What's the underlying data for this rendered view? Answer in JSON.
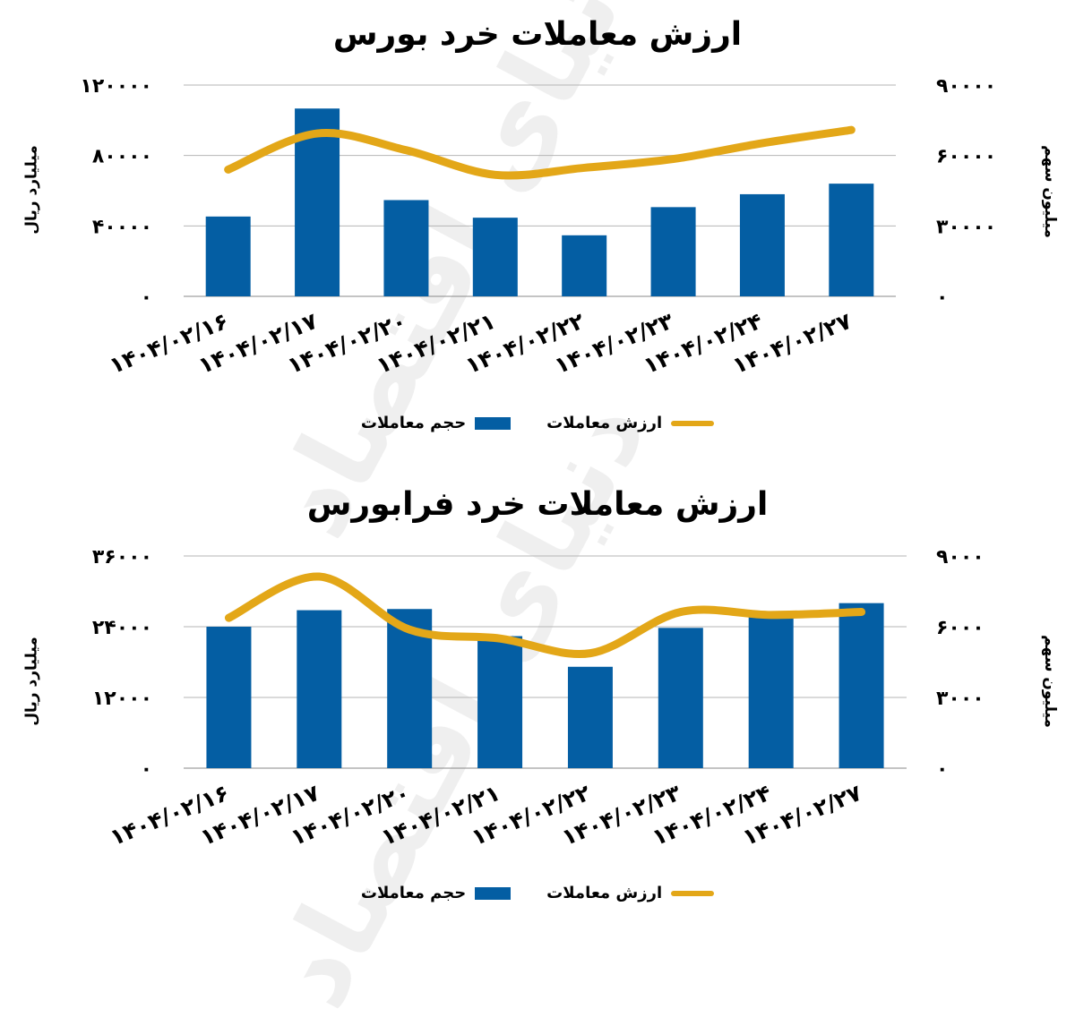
{
  "watermark_text": "دنیای اقتصاد",
  "colors": {
    "bar": "#045ea3",
    "line": "#e3a718",
    "grid": "#b4b4b4"
  },
  "legend": {
    "bar_label": "حجم معاملات",
    "line_label": "ارزش معاملات"
  },
  "chart_data": [
    {
      "type": "bar",
      "title": "ارزش معاملات خرد بورس",
      "ylabel_left": "میلیارد ریال",
      "ylabel_right": "میلیون سهم",
      "categories": [
        "1404/02/16",
        "1404/02/17",
        "1404/02/20",
        "1404/02/21",
        "1404/02/22",
        "1404/02/23",
        "1404/02/24",
        "1404/02/27"
      ],
      "y_left": {
        "range": [
          0,
          120000
        ],
        "ticks": [
          "0",
          "40000",
          "80000",
          "120000"
        ]
      },
      "y_right": {
        "range": [
          0,
          90000
        ],
        "ticks": [
          "0",
          "30000",
          "60000",
          "90000"
        ]
      },
      "grid": true,
      "series": [
        {
          "name": "حجم معاملات",
          "kind": "bar",
          "axis": "right",
          "values": [
            34000,
            80000,
            41000,
            33500,
            26000,
            38000,
            43500,
            48000
          ]
        },
        {
          "name": "ارزش معاملات",
          "kind": "line",
          "axis": "left",
          "values": [
            72000,
            92500,
            83000,
            69000,
            73000,
            78000,
            87000,
            94500
          ]
        }
      ]
    },
    {
      "type": "bar",
      "title": "ارزش معاملات خرد فرابورس",
      "ylabel_left": "میلیارد ریال",
      "ylabel_right": "میلیون سهم",
      "categories": [
        "1404/02/16",
        "1404/02/17",
        "1404/02/20",
        "1404/02/21",
        "1404/02/22",
        "1404/02/23",
        "1404/02/24",
        "1404/02/27"
      ],
      "y_left": {
        "range": [
          0,
          36000
        ],
        "ticks": [
          "0",
          "12000",
          "24000",
          "36000"
        ]
      },
      "y_right": {
        "range": [
          0,
          9000
        ],
        "ticks": [
          "0",
          "3000",
          "6000",
          "9000"
        ]
      },
      "grid": true,
      "series": [
        {
          "name": "حجم معاملات",
          "kind": "bar",
          "axis": "right",
          "values": [
            6000,
            6700,
            6750,
            5600,
            4300,
            5950,
            6450,
            7000
          ]
        },
        {
          "name": "ارزش معاملات",
          "kind": "line",
          "axis": "left",
          "values": [
            25500,
            32500,
            23500,
            22000,
            19500,
            26500,
            26000,
            26500
          ]
        }
      ]
    }
  ]
}
